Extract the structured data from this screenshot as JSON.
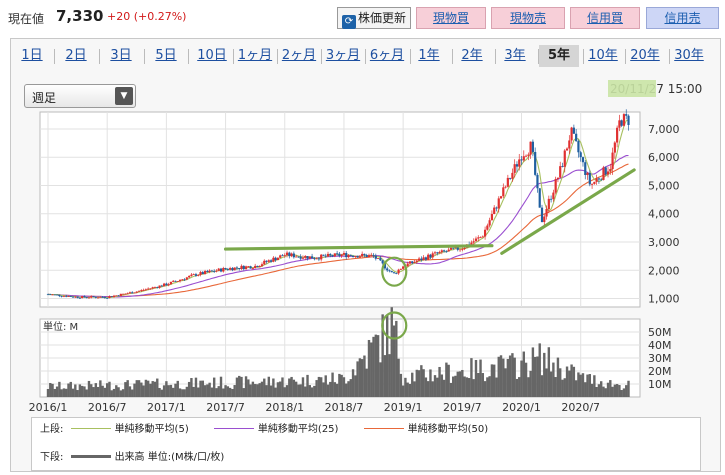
{
  "header": {
    "price_label": "現在値",
    "price": "7,330",
    "change": "+20 (+0.27%)",
    "refresh_label": "株価更新",
    "buttons": [
      "現物買",
      "現物売",
      "信用買",
      "信用売"
    ]
  },
  "tabs": [
    "1日",
    "2日",
    "3日",
    "5日",
    "10日",
    "1ヶ月",
    "2ヶ月",
    "3ヶ月",
    "6ヶ月",
    "1年",
    "2年",
    "3年",
    "5年",
    "10年",
    "20年",
    "30年"
  ],
  "active_tab": "5年",
  "period": {
    "selected": "週足"
  },
  "datetime": "20/11/27 15:00",
  "colors": {
    "up_candle": "#e03030",
    "down_candle": "#1f5fa0",
    "ma5": "#a8c060",
    "ma25": "#9a4fd0",
    "ma50": "#e8683a",
    "volume": "#666666",
    "annotation": "#7aa84a",
    "price_up": "#d21a1a"
  },
  "chart_data": {
    "type": "line",
    "x_tick_labels": [
      "2016/1",
      "2016/7",
      "2017/1",
      "2017/7",
      "2018/1",
      "2018/7",
      "2019/1",
      "2019/7",
      "2020/1",
      "2020/7"
    ],
    "price_axis": {
      "labels": [
        "7,000",
        "6,000",
        "5,000",
        "4,000",
        "3,000",
        "2,000",
        "1,000"
      ],
      "ylim": [
        700,
        7600
      ]
    },
    "volume_axis": {
      "unit_label": "単位: M",
      "labels": [
        "50M",
        "40M",
        "30M",
        "20M",
        "10M"
      ],
      "ylim": [
        0,
        60
      ]
    },
    "price_series": [
      {
        "x": "2016/1",
        "y": 1150
      },
      {
        "x": "2016/4",
        "y": 1050
      },
      {
        "x": "2016/7",
        "y": 1050
      },
      {
        "x": "2016/10",
        "y": 1250
      },
      {
        "x": "2017/1",
        "y": 1500
      },
      {
        "x": "2017/4",
        "y": 1850
      },
      {
        "x": "2017/7",
        "y": 2050
      },
      {
        "x": "2017/10",
        "y": 2150
      },
      {
        "x": "2018/1",
        "y": 2550
      },
      {
        "x": "2018/4",
        "y": 2450
      },
      {
        "x": "2018/7",
        "y": 2550
      },
      {
        "x": "2018/10",
        "y": 2500
      },
      {
        "x": "2018/12",
        "y": 1850
      },
      {
        "x": "2019/1",
        "y": 2150
      },
      {
        "x": "2019/4",
        "y": 2550
      },
      {
        "x": "2019/7",
        "y": 2800
      },
      {
        "x": "2019/9",
        "y": 3200
      },
      {
        "x": "2019/11",
        "y": 4700
      },
      {
        "x": "2020/1",
        "y": 6100
      },
      {
        "x": "2020/2",
        "y": 6400
      },
      {
        "x": "2020/3",
        "y": 3700
      },
      {
        "x": "2020/5",
        "y": 5600
      },
      {
        "x": "2020/6",
        "y": 6900
      },
      {
        "x": "2020/8",
        "y": 5000
      },
      {
        "x": "2020/10",
        "y": 5700
      },
      {
        "x": "2020/11",
        "y": 7330
      }
    ],
    "volume_series": [
      {
        "x": "2016/1",
        "y": 8
      },
      {
        "x": "2016/7",
        "y": 9
      },
      {
        "x": "2017/1",
        "y": 10
      },
      {
        "x": "2017/7",
        "y": 11
      },
      {
        "x": "2018/1",
        "y": 12
      },
      {
        "x": "2018/7",
        "y": 14
      },
      {
        "x": "2018/12",
        "y": 55
      },
      {
        "x": "2019/1",
        "y": 16
      },
      {
        "x": "2019/7",
        "y": 20
      },
      {
        "x": "2020/1",
        "y": 25
      },
      {
        "x": "2020/3",
        "y": 30
      },
      {
        "x": "2020/7",
        "y": 15
      },
      {
        "x": "2020/11",
        "y": 9
      }
    ]
  },
  "legend": {
    "upper_label": "上段:",
    "ma5": "単純移動平均(5)",
    "ma25": "単純移動平均(25)",
    "ma50": "単純移動平均(50)",
    "lower_label": "下段:",
    "volume": "出来高 単位:(M株/口/枚)"
  }
}
